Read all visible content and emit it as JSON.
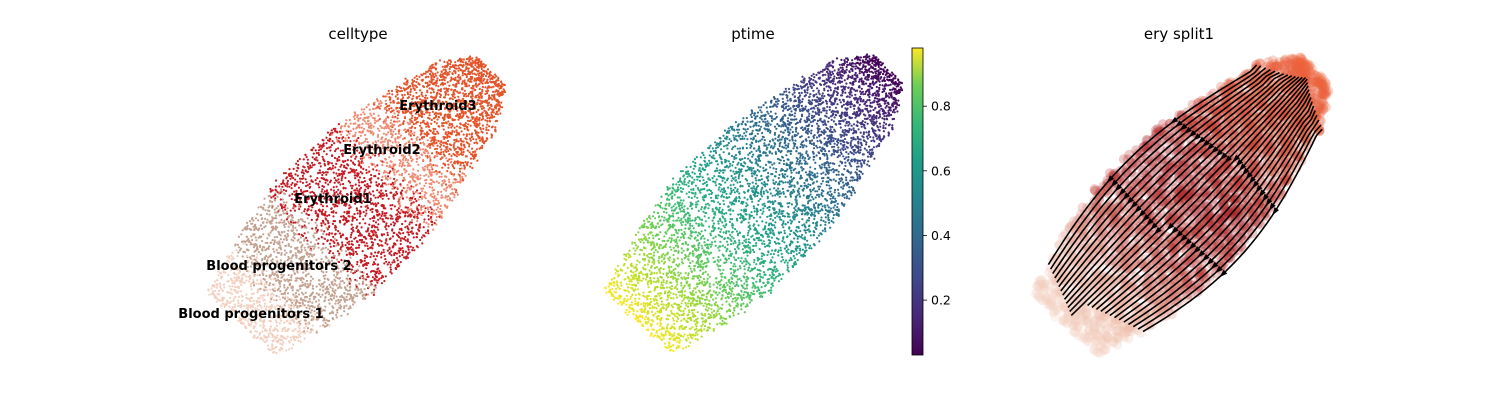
{
  "chart_data": [
    {
      "type": "scatter",
      "title": "celltype",
      "legend_placement": "on data",
      "axes_visible": false,
      "categories": [
        "Blood progenitors 1",
        "Blood progenitors 2",
        "Erythroid1",
        "Erythroid2",
        "Erythroid3"
      ],
      "category_colors": [
        "#f2d0c0",
        "#c4a291",
        "#c61a22",
        "#ef8b73",
        "#e4542a"
      ]
    },
    {
      "type": "scatter",
      "title": "ptime",
      "colormap": "viridis",
      "colorbar": {
        "range": [
          0.03,
          0.98
        ],
        "ticks": [
          0.2,
          0.4,
          0.6,
          0.8
        ],
        "tick_labels": [
          "0.2",
          "0.4",
          "0.6",
          "0.8"
        ]
      },
      "axes_visible": false
    },
    {
      "type": "scatter",
      "title": "ery split1",
      "overlay": "streamlines with arrows",
      "colormap": "Reds",
      "axes_visible": false
    }
  ]
}
